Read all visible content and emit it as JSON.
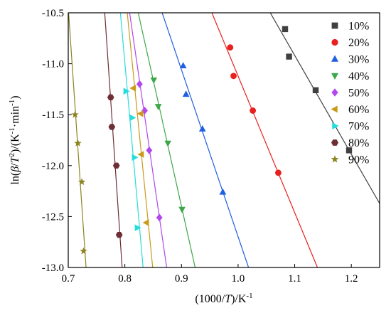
{
  "chart_data": {
    "type": "scatter",
    "title": "",
    "xlabel": "(1000/T)/K⁻¹",
    "ylabel": "ln(β/T²)/(K⁻¹·min⁻¹)",
    "xlim": [
      0.7,
      1.25
    ],
    "ylim": [
      -13.0,
      -10.5
    ],
    "xticks": [
      "0.7",
      "0.8",
      "0.9",
      "1.0",
      "1.1",
      "1.2"
    ],
    "yticks": [
      "-10.5",
      "-11.0",
      "-11.5",
      "-12.0",
      "-12.5",
      "-13.0"
    ],
    "legend_position": "right",
    "fit_lines": true,
    "grid": false,
    "series": [
      {
        "name": "10%",
        "color": "#404040",
        "marker": "square",
        "x": [
          1.083,
          1.09,
          1.137,
          1.196
        ],
        "y": [
          -10.66,
          -10.93,
          -11.26,
          -11.85
        ]
      },
      {
        "name": "20%",
        "color": "#e8201e",
        "marker": "circle",
        "x": [
          0.986,
          0.992,
          1.026,
          1.071
        ],
        "y": [
          -10.84,
          -11.12,
          -11.46,
          -12.07
        ]
      },
      {
        "name": "30%",
        "color": "#1f5fe0",
        "marker": "triangle-up",
        "x": [
          0.903,
          0.908,
          0.937,
          0.973
        ],
        "y": [
          -11.02,
          -11.3,
          -11.64,
          -12.26
        ]
      },
      {
        "name": "40%",
        "color": "#3da84a",
        "marker": "triangle-down",
        "x": [
          0.851,
          0.859,
          0.876,
          0.901
        ],
        "y": [
          -11.16,
          -11.42,
          -11.78,
          -12.43
        ]
      },
      {
        "name": "50%",
        "color": "#b247ee",
        "marker": "diamond",
        "x": [
          0.826,
          0.835,
          0.843,
          0.861
        ],
        "y": [
          -11.2,
          -11.46,
          -11.85,
          -12.51
        ]
      },
      {
        "name": "60%",
        "color": "#c99a1b",
        "marker": "triangle-left",
        "x": [
          0.815,
          0.828,
          0.829,
          0.838
        ],
        "y": [
          -11.24,
          -11.49,
          -11.89,
          -12.56
        ]
      },
      {
        "name": "70%",
        "color": "#27dcdc",
        "marker": "triangle-right",
        "x": [
          0.802,
          0.813,
          0.817,
          0.822
        ],
        "y": [
          -11.27,
          -11.53,
          -11.92,
          -12.61
        ]
      },
      {
        "name": "80%",
        "color": "#6e2e36",
        "marker": "hexagon",
        "x": [
          0.775,
          0.777,
          0.785,
          0.79
        ],
        "y": [
          -11.33,
          -11.62,
          -12.0,
          -12.68
        ]
      },
      {
        "name": "90%",
        "color": "#8b8420",
        "marker": "star",
        "x": [
          0.712,
          0.717,
          0.724,
          0.727
        ],
        "y": [
          -11.5,
          -11.78,
          -12.16,
          -12.84
        ]
      }
    ]
  }
}
